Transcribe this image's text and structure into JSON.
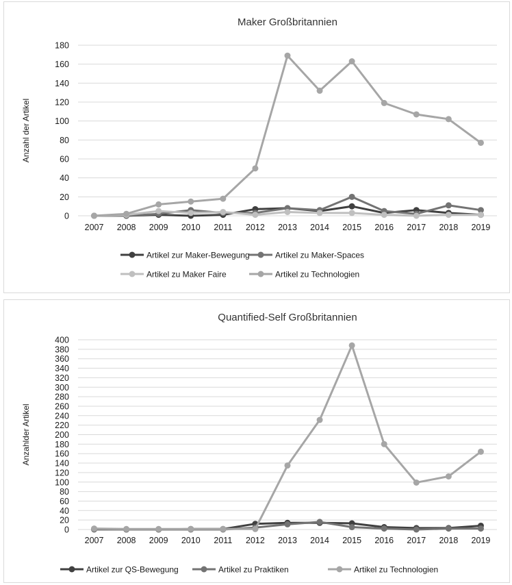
{
  "chart_data": [
    {
      "type": "line",
      "title": "Maker Großbritannien",
      "xlabel": "",
      "ylabel": "Anzahl der Artikel",
      "ylim": [
        0,
        180
      ],
      "yticks": [
        0,
        20,
        40,
        60,
        80,
        100,
        120,
        140,
        160,
        180
      ],
      "grid": true,
      "legend_position": "bottom",
      "x": [
        "2007",
        "2008",
        "2009",
        "2010",
        "2011",
        "2012",
        "2013",
        "2014",
        "2015",
        "2016",
        "2017",
        "2018",
        "2019"
      ],
      "series": [
        {
          "name": "Artikel zur Maker-Bewegung",
          "color": "#404040",
          "values": [
            0,
            0,
            1,
            0,
            1,
            7,
            8,
            5,
            10,
            3,
            6,
            3,
            1
          ]
        },
        {
          "name": "Artikel zu Maker-Spaces",
          "color": "#737373",
          "values": [
            0,
            0,
            2,
            6,
            3,
            3,
            8,
            6,
            20,
            5,
            2,
            11,
            6
          ]
        },
        {
          "name": "Artikel zu Maker Faire",
          "color": "#bfbfbf",
          "values": [
            0,
            1,
            5,
            3,
            4,
            1,
            4,
            3,
            3,
            1,
            0,
            1,
            1
          ]
        },
        {
          "name": "Artikel zu Technologien",
          "color": "#a6a6a6",
          "values": [
            0,
            2,
            12,
            15,
            18,
            50,
            169,
            132,
            163,
            119,
            107,
            102,
            77
          ]
        }
      ]
    },
    {
      "type": "line",
      "title": "Quantified-Self Großbritannien",
      "xlabel": "",
      "ylabel": "Anzahlder Artikel",
      "ylim": [
        0,
        400
      ],
      "yticks": [
        0,
        20,
        40,
        60,
        80,
        100,
        120,
        140,
        160,
        180,
        200,
        220,
        240,
        260,
        280,
        300,
        320,
        340,
        360,
        380,
        400
      ],
      "grid": true,
      "legend_position": "bottom",
      "x": [
        "2007",
        "2008",
        "2009",
        "2010",
        "2011",
        "2012",
        "2013",
        "2014",
        "2015",
        "2016",
        "2017",
        "2018",
        "2019"
      ],
      "series": [
        {
          "name": "Artikel zur QS-Bewegung",
          "color": "#404040",
          "values": [
            1,
            0,
            0,
            1,
            1,
            12,
            14,
            14,
            13,
            5,
            3,
            3,
            8
          ]
        },
        {
          "name": "Artikel zu Praktiken",
          "color": "#737373",
          "values": [
            0,
            0,
            0,
            0,
            0,
            4,
            11,
            16,
            5,
            2,
            0,
            2,
            2
          ]
        },
        {
          "name": "Artikel zu Technologien",
          "color": "#a6a6a6",
          "values": [
            2,
            1,
            1,
            1,
            1,
            1,
            135,
            231,
            388,
            180,
            99,
            112,
            164
          ]
        }
      ]
    }
  ]
}
